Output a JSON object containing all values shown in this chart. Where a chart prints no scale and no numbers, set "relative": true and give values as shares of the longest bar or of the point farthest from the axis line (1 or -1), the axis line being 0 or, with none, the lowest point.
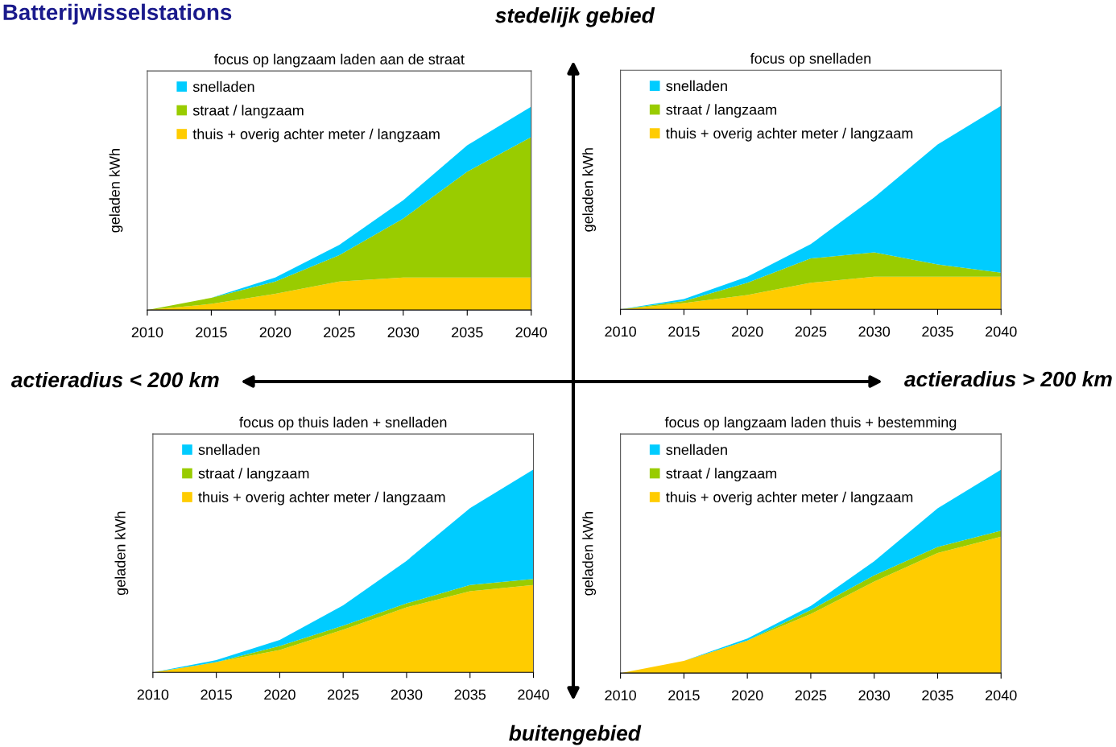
{
  "chart_data": [
    {
      "type": "area",
      "stacked": true,
      "relative": true,
      "title": "focus op langzaam laden aan de straat",
      "ylabel": "geladen kWh",
      "x": [
        2010,
        2015,
        2020,
        2025,
        2030,
        2035,
        2040
      ],
      "xlim": [
        2010,
        2040
      ],
      "xticks": [
        2010,
        2015,
        2020,
        2025,
        2030,
        2035,
        2040
      ],
      "tick_labels": "x",
      "legend": "top left",
      "grid": false,
      "series": [
        {
          "name": "thuis + overig achter meter / langzaam",
          "color": "#ffcc00",
          "values": [
            0,
            0.03,
            0.08,
            0.14,
            0.16,
            0.16,
            0.16
          ]
        },
        {
          "name": "straat / langzaam",
          "color": "#99cc00",
          "values": [
            0,
            0.03,
            0.06,
            0.13,
            0.29,
            0.52,
            0.69
          ]
        },
        {
          "name": "snelladen",
          "color": "#00ccff",
          "values": [
            0,
            0,
            0.02,
            0.05,
            0.09,
            0.13,
            0.15
          ]
        }
      ]
    },
    {
      "type": "area",
      "stacked": true,
      "relative": true,
      "title": "focus op snelladen",
      "ylabel": "geladen kWh",
      "x": [
        2010,
        2015,
        2020,
        2025,
        2030,
        2035,
        2040
      ],
      "xlim": [
        2010,
        2040
      ],
      "xticks": [
        2010,
        2015,
        2020,
        2025,
        2030,
        2035,
        2040
      ],
      "tick_labels": "x",
      "legend": "top left",
      "grid": false,
      "series": [
        {
          "name": "thuis + overig achter meter / langzaam",
          "color": "#ffcc00",
          "values": [
            0,
            0.03,
            0.07,
            0.13,
            0.16,
            0.16,
            0.16
          ]
        },
        {
          "name": "straat / langzaam",
          "color": "#99cc00",
          "values": [
            0,
            0.01,
            0.06,
            0.12,
            0.12,
            0.06,
            0.02
          ]
        },
        {
          "name": "snelladen",
          "color": "#00ccff",
          "values": [
            0,
            0.01,
            0.03,
            0.07,
            0.27,
            0.59,
            0.82
          ]
        }
      ]
    },
    {
      "type": "area",
      "stacked": true,
      "relative": true,
      "title": "focus op thuis laden + snelladen",
      "ylabel": "geladen kWh",
      "x": [
        2010,
        2015,
        2020,
        2025,
        2030,
        2035,
        2040
      ],
      "xlim": [
        2010,
        2040
      ],
      "xticks": [
        2010,
        2015,
        2020,
        2025,
        2030,
        2035,
        2040
      ],
      "tick_labels": "x",
      "legend": "top left",
      "grid": false,
      "series": [
        {
          "name": "thuis + overig achter meter / langzaam",
          "color": "#ffcc00",
          "values": [
            0,
            0.05,
            0.11,
            0.21,
            0.32,
            0.4,
            0.43
          ]
        },
        {
          "name": "straat / langzaam",
          "color": "#99cc00",
          "values": [
            0,
            0,
            0.02,
            0.02,
            0.02,
            0.03,
            0.03
          ]
        },
        {
          "name": "snelladen",
          "color": "#00ccff",
          "values": [
            0,
            0.01,
            0.03,
            0.1,
            0.21,
            0.38,
            0.54
          ]
        }
      ]
    },
    {
      "type": "area",
      "stacked": true,
      "relative": true,
      "title": "focus op langzaam laden thuis + bestemming",
      "ylabel": "geladen kWh",
      "x": [
        2010,
        2015,
        2020,
        2025,
        2030,
        2035,
        2040
      ],
      "xlim": [
        2010,
        2040
      ],
      "xticks": [
        2010,
        2015,
        2020,
        2025,
        2030,
        2035,
        2040
      ],
      "tick_labels": "x",
      "legend": "top left",
      "grid": false,
      "series": [
        {
          "name": "thuis + overig achter meter / langzaam",
          "color": "#ffcc00",
          "values": [
            0,
            0.06,
            0.16,
            0.29,
            0.45,
            0.59,
            0.67
          ]
        },
        {
          "name": "straat / langzaam",
          "color": "#99cc00",
          "values": [
            0,
            0,
            0,
            0.02,
            0.03,
            0.03,
            0.03
          ]
        },
        {
          "name": "snelladen",
          "color": "#00ccff",
          "values": [
            0,
            0,
            0.01,
            0.02,
            0.07,
            0.19,
            0.3
          ]
        }
      ]
    },
    {
      "type": "other",
      "title": "Batterijwisselstations",
      "annotations": [
        "stedelijk gebied",
        "buitengebied",
        "actieradius < 200 km",
        "actieradius > 200 km"
      ]
    }
  ]
}
